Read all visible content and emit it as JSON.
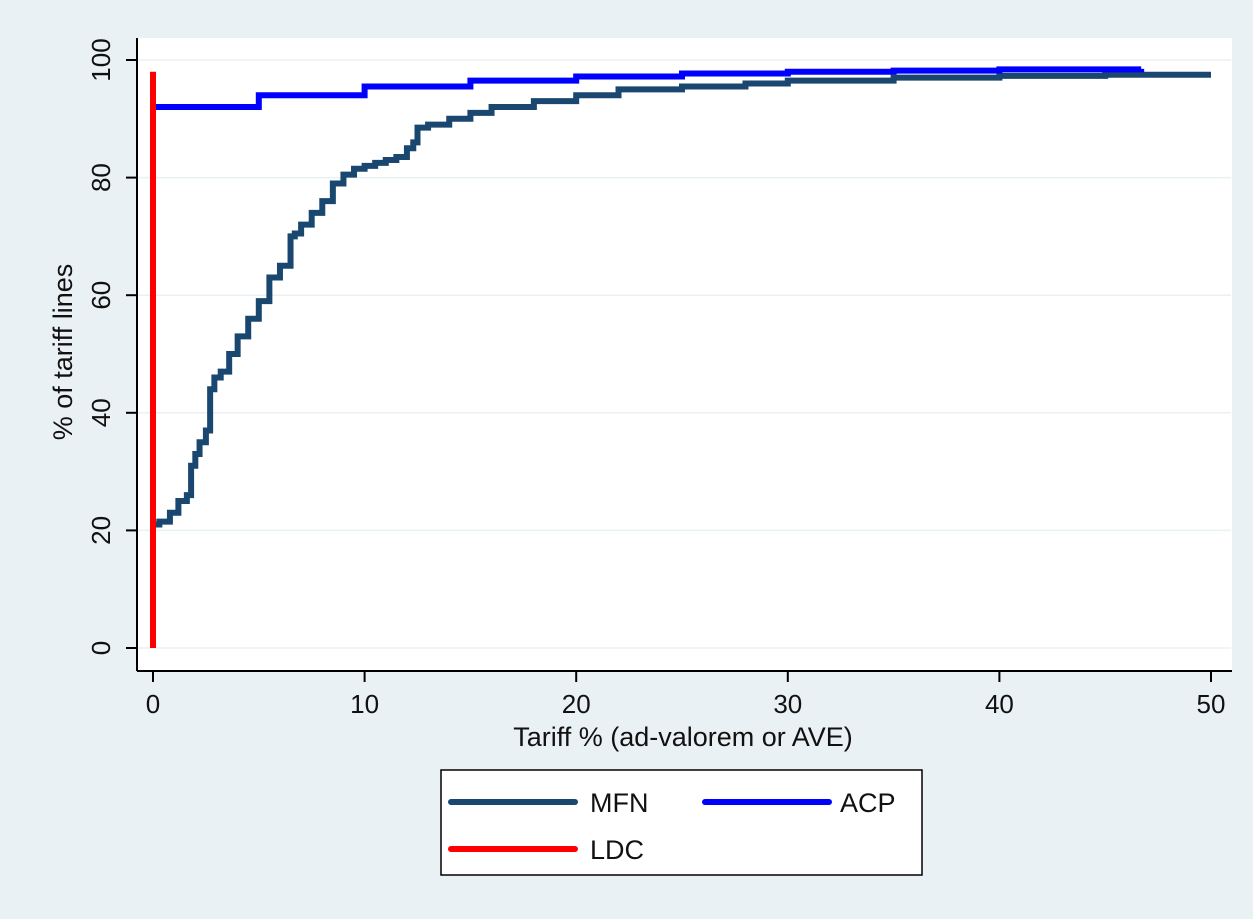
{
  "chart_data": {
    "type": "line",
    "title": "",
    "xlabel": "Tariff % (ad-valorem or AVE)",
    "ylabel": "% of tariff lines",
    "xlim": [
      0,
      50
    ],
    "ylim": [
      0,
      100
    ],
    "xticks": [
      0,
      10,
      20,
      30,
      40,
      50
    ],
    "yticks": [
      0,
      20,
      40,
      60,
      80,
      100
    ],
    "grid": true,
    "legend_position": "bottom-center",
    "step": true,
    "colors": {
      "background": "#eaf1f4",
      "plot_background": "#ffffff",
      "grid": "#eaf1f4",
      "axis": "#000000"
    },
    "series": [
      {
        "name": "MFN",
        "color": "#1a476f",
        "x": [
          0,
          0.3,
          0.8,
          1.2,
          1.6,
          1.8,
          2.0,
          2.2,
          2.5,
          2.7,
          2.9,
          3.2,
          3.6,
          4.0,
          4.5,
          5.0,
          5.5,
          6.0,
          6.5,
          6.7,
          7.0,
          7.5,
          8.0,
          8.5,
          9.0,
          9.5,
          10.0,
          10.5,
          11.0,
          11.5,
          12.0,
          12.3,
          12.5,
          13.0,
          14.0,
          15.0,
          16.0,
          18.0,
          20.0,
          22.0,
          25.0,
          28.0,
          30.0,
          35.0,
          40.0,
          45.0,
          50.0
        ],
        "y": [
          21,
          21.5,
          23,
          25,
          26,
          31,
          33,
          35,
          37,
          44,
          46,
          47,
          50,
          53,
          56,
          59,
          63,
          65,
          70,
          70.5,
          72,
          74,
          76,
          79,
          80.5,
          81.5,
          82,
          82.5,
          83,
          83.5,
          85,
          86,
          88.5,
          89,
          90,
          91,
          92,
          93,
          94,
          95,
          95.5,
          96,
          96.5,
          97,
          97.3,
          97.5,
          97.5
        ]
      },
      {
        "name": "ACP",
        "color": "#0000ff",
        "x": [
          0,
          5,
          10,
          15,
          20,
          25,
          30,
          35,
          40,
          46.7
        ],
        "y": [
          92,
          94,
          95.5,
          96.5,
          97.2,
          97.7,
          98,
          98.2,
          98.4,
          98.5
        ]
      },
      {
        "name": "LDC",
        "color": "#ff0000",
        "x": [
          0,
          0
        ],
        "y": [
          0,
          98
        ]
      }
    ]
  }
}
